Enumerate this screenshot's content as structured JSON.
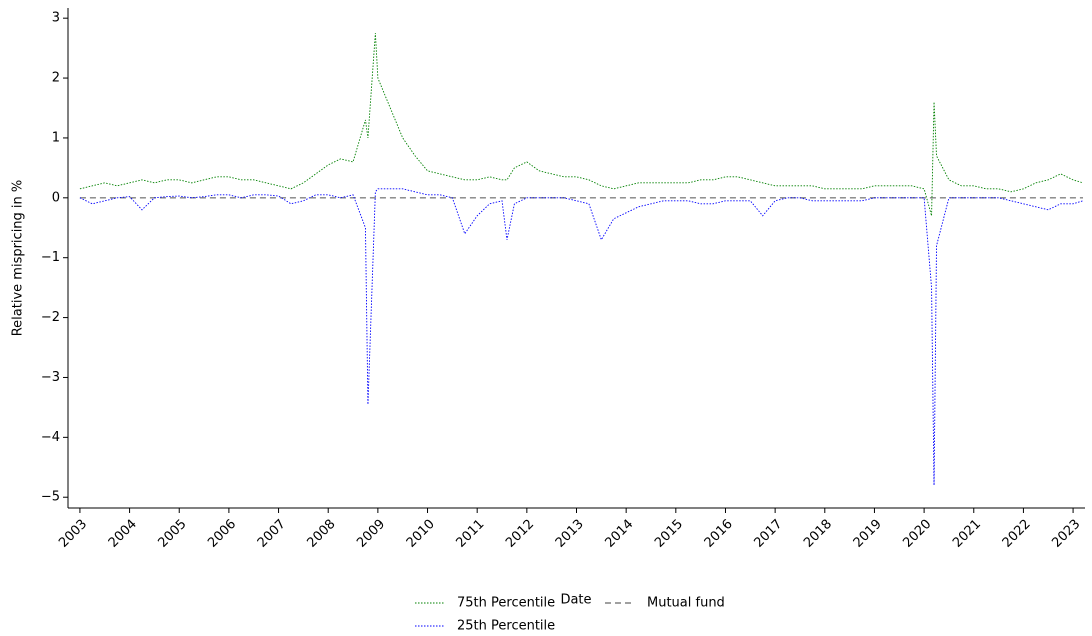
{
  "chart_data": {
    "type": "line",
    "x_label": "Date",
    "y_label": "Relative mispricing in %",
    "xlim": [
      2002.76,
      2023.24
    ],
    "ylim": [
      -5.18,
      3.17
    ],
    "xticks": [
      2003,
      2004,
      2005,
      2006,
      2007,
      2008,
      2009,
      2010,
      2011,
      2012,
      2013,
      2014,
      2015,
      2016,
      2017,
      2018,
      2019,
      2020,
      2021,
      2022,
      2023
    ],
    "yticks": [
      {
        "value": -5,
        "label": "−5"
      },
      {
        "value": -4,
        "label": "−4"
      },
      {
        "value": -3,
        "label": "−3"
      },
      {
        "value": -2,
        "label": "−2"
      },
      {
        "value": -1,
        "label": "−1"
      },
      0,
      1,
      2,
      3
    ],
    "legend": "below",
    "x": [
      2003,
      2003.25,
      2003.5,
      2003.75,
      2004,
      2004.25,
      2004.5,
      2004.75,
      2005,
      2005.25,
      2005.5,
      2005.75,
      2006,
      2006.25,
      2006.5,
      2006.75,
      2007,
      2007.25,
      2007.5,
      2007.75,
      2008,
      2008.25,
      2008.5,
      2008.75,
      2008.8,
      2008.95,
      2009,
      2009.25,
      2009.5,
      2009.75,
      2010,
      2010.25,
      2010.5,
      2010.75,
      2011,
      2011.25,
      2011.5,
      2011.6,
      2011.75,
      2012,
      2012.25,
      2012.5,
      2012.75,
      2013,
      2013.25,
      2013.5,
      2013.75,
      2014,
      2014.25,
      2014.5,
      2014.75,
      2015,
      2015.25,
      2015.5,
      2015.75,
      2016,
      2016.25,
      2016.5,
      2016.75,
      2017,
      2017.25,
      2017.5,
      2017.75,
      2018,
      2018.25,
      2018.5,
      2018.75,
      2019,
      2019.25,
      2019.5,
      2019.75,
      2020,
      2020.15,
      2020.2,
      2020.25,
      2020.5,
      2020.75,
      2021,
      2021.25,
      2021.5,
      2021.75,
      2022,
      2022.25,
      2022.5,
      2022.75,
      2023,
      2023.2
    ],
    "series": [
      {
        "name": "75th Percentile",
        "color": "#008000",
        "style": "dotted",
        "values": [
          0.15,
          0.2,
          0.25,
          0.2,
          0.25,
          0.3,
          0.25,
          0.3,
          0.3,
          0.25,
          0.3,
          0.35,
          0.35,
          0.3,
          0.3,
          0.25,
          0.2,
          0.15,
          0.25,
          0.4,
          0.55,
          0.65,
          0.6,
          1.3,
          1.0,
          2.75,
          2.0,
          1.5,
          1.0,
          0.7,
          0.45,
          0.4,
          0.35,
          0.3,
          0.3,
          0.35,
          0.3,
          0.3,
          0.5,
          0.6,
          0.45,
          0.4,
          0.35,
          0.35,
          0.3,
          0.2,
          0.15,
          0.2,
          0.25,
          0.25,
          0.25,
          0.25,
          0.25,
          0.3,
          0.3,
          0.35,
          0.35,
          0.3,
          0.25,
          0.2,
          0.2,
          0.2,
          0.2,
          0.15,
          0.15,
          0.15,
          0.15,
          0.2,
          0.2,
          0.2,
          0.2,
          0.15,
          -0.3,
          1.6,
          0.7,
          0.3,
          0.2,
          0.2,
          0.15,
          0.15,
          0.1,
          0.15,
          0.25,
          0.3,
          0.4,
          0.3,
          0.25
        ]
      },
      {
        "name": "25th Percentile",
        "color": "#0000ff",
        "style": "dotted",
        "values": [
          0.0,
          -0.1,
          -0.05,
          0.0,
          0.02,
          -0.2,
          0.0,
          0.02,
          0.03,
          0.0,
          0.02,
          0.05,
          0.05,
          0.0,
          0.05,
          0.05,
          0.03,
          -0.1,
          -0.05,
          0.05,
          0.05,
          0.0,
          0.05,
          -0.5,
          -3.45,
          0.1,
          0.15,
          0.15,
          0.15,
          0.1,
          0.05,
          0.05,
          0.0,
          -0.6,
          -0.3,
          -0.1,
          -0.05,
          -0.7,
          -0.1,
          0.0,
          0.0,
          0.0,
          0.0,
          -0.05,
          -0.1,
          -0.7,
          -0.35,
          -0.25,
          -0.15,
          -0.1,
          -0.05,
          -0.05,
          -0.05,
          -0.1,
          -0.1,
          -0.05,
          -0.05,
          -0.05,
          -0.3,
          -0.05,
          0.0,
          0.0,
          -0.05,
          -0.05,
          -0.05,
          -0.05,
          -0.05,
          0.0,
          0.0,
          0.0,
          0.0,
          0.0,
          -1.5,
          -4.8,
          -0.8,
          0.0,
          0.0,
          0.0,
          0.0,
          0.0,
          -0.05,
          -0.1,
          -0.15,
          -0.2,
          -0.1,
          -0.1,
          -0.05
        ]
      },
      {
        "name": "Mutual fund",
        "color": "#808080",
        "style": "dashed",
        "x": [
          2003,
          2023.2
        ],
        "values": [
          0,
          0
        ]
      }
    ]
  }
}
